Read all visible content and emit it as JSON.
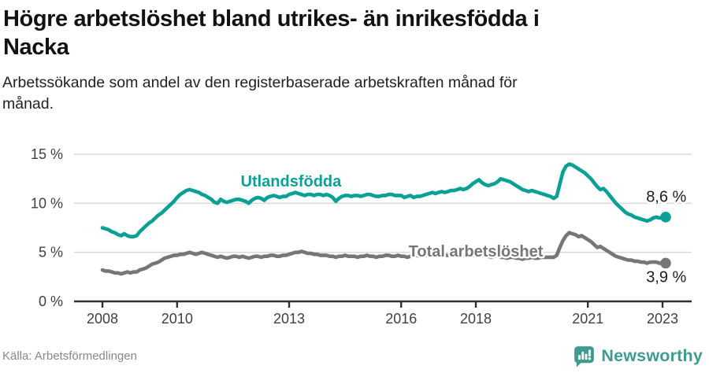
{
  "header": {
    "title": "Högre arbetslöshet bland utrikes- än inrikesfödda i\nNacka",
    "subtitle": "Arbetssökande som andel av den registerbaserade arbetskraften månad för\nmånad."
  },
  "footer": {
    "source": "Källa: Arbetsförmedlingen",
    "brand_name": "Newsworthy",
    "brand_icon": "speech-bubble-bar-chart-icon"
  },
  "colors": {
    "foreign_born_line": "#0ba095",
    "total_line": "#76767a",
    "value_label": "#1d1d1f",
    "axis": "#2f2f2f",
    "grid": "#d9d9d9",
    "tick_label": "#404040",
    "brand_teal": "#3f9b8f",
    "background": "#ffffff"
  },
  "chart_data": {
    "type": "line",
    "title": "Högre arbetslöshet bland utrikes- än inrikesfödda i Nacka",
    "subtitle": "Arbetssökande som andel av den registerbaserade arbetskraften månad för månad.",
    "source": "Källa: Arbetsförmedlingen",
    "x_start_year": 2008,
    "x_step_months": 1,
    "xlim": [
      2007.24,
      2023.78
    ],
    "ylim": [
      0,
      15
    ],
    "xticks": [
      2008,
      2010,
      2013,
      2016,
      2018,
      2021,
      2023
    ],
    "yticks": [
      0,
      5,
      10,
      15
    ],
    "ytick_suffix": " %",
    "grid": "horizontal",
    "legend_position": "inline-labels",
    "series": [
      {
        "name": "Utlandsfödda",
        "color": "#0ba095",
        "end_value_label": "8,6 %",
        "end_value": 8.6,
        "values": [
          7.5,
          7.4,
          7.3,
          7.1,
          7.0,
          6.8,
          6.7,
          6.9,
          6.7,
          6.6,
          6.6,
          6.7,
          7.1,
          7.4,
          7.7,
          8.0,
          8.2,
          8.5,
          8.8,
          9.0,
          9.3,
          9.6,
          9.9,
          10.2,
          10.6,
          10.9,
          11.1,
          11.3,
          11.4,
          11.3,
          11.2,
          11.1,
          10.9,
          10.8,
          10.6,
          10.4,
          10.1,
          10.0,
          10.4,
          10.2,
          10.1,
          10.2,
          10.3,
          10.4,
          10.4,
          10.3,
          10.2,
          10.0,
          10.3,
          10.5,
          10.6,
          10.5,
          10.3,
          10.6,
          10.7,
          10.8,
          10.7,
          10.6,
          10.7,
          10.7,
          10.9,
          11.0,
          11.1,
          11.0,
          10.9,
          10.8,
          10.9,
          10.9,
          10.8,
          10.9,
          10.9,
          10.8,
          10.9,
          10.8,
          10.6,
          10.2,
          10.5,
          10.7,
          10.8,
          10.8,
          10.7,
          10.8,
          10.8,
          10.7,
          10.8,
          10.9,
          10.9,
          10.8,
          10.7,
          10.7,
          10.8,
          10.8,
          10.9,
          10.9,
          10.8,
          10.8,
          10.8,
          10.6,
          10.7,
          10.8,
          10.6,
          10.7,
          10.7,
          10.8,
          10.9,
          11.0,
          11.1,
          11.0,
          11.1,
          11.2,
          11.1,
          11.2,
          11.3,
          11.3,
          11.4,
          11.5,
          11.4,
          11.5,
          11.7,
          12.0,
          12.2,
          12.4,
          12.1,
          11.9,
          11.8,
          11.9,
          12.0,
          12.2,
          12.5,
          12.4,
          12.3,
          12.2,
          12.0,
          11.8,
          11.6,
          11.4,
          11.3,
          11.2,
          11.3,
          11.2,
          11.1,
          11.0,
          10.9,
          10.8,
          10.7,
          10.5,
          10.7,
          12.0,
          13.2,
          13.8,
          14.0,
          13.9,
          13.7,
          13.5,
          13.3,
          13.1,
          12.8,
          12.5,
          12.1,
          11.7,
          11.4,
          11.5,
          11.2,
          10.8,
          10.4,
          10.0,
          9.7,
          9.4,
          9.1,
          8.9,
          8.8,
          8.6,
          8.5,
          8.4,
          8.3,
          8.2,
          8.3,
          8.5,
          8.6,
          8.5,
          8.5,
          8.6
        ]
      },
      {
        "name": "Total arbetslöshet",
        "color": "#76767a",
        "end_value_label": "3,9 %",
        "end_value": 3.9,
        "values": [
          3.2,
          3.1,
          3.1,
          3.0,
          2.9,
          2.9,
          2.8,
          2.9,
          3.0,
          2.9,
          3.0,
          3.0,
          3.2,
          3.3,
          3.4,
          3.6,
          3.8,
          3.9,
          4.0,
          4.2,
          4.4,
          4.5,
          4.6,
          4.7,
          4.7,
          4.8,
          4.8,
          4.9,
          5.0,
          4.9,
          4.8,
          4.9,
          5.0,
          4.9,
          4.8,
          4.7,
          4.6,
          4.5,
          4.6,
          4.5,
          4.4,
          4.5,
          4.6,
          4.6,
          4.5,
          4.6,
          4.5,
          4.4,
          4.5,
          4.6,
          4.6,
          4.5,
          4.6,
          4.6,
          4.7,
          4.7,
          4.6,
          4.6,
          4.7,
          4.7,
          4.8,
          4.9,
          5.0,
          5.0,
          5.1,
          5.0,
          4.9,
          4.9,
          4.8,
          4.8,
          4.7,
          4.7,
          4.7,
          4.6,
          4.6,
          4.5,
          4.6,
          4.6,
          4.7,
          4.6,
          4.6,
          4.6,
          4.5,
          4.6,
          4.6,
          4.7,
          4.6,
          4.6,
          4.5,
          4.6,
          4.6,
          4.7,
          4.7,
          4.6,
          4.6,
          4.7,
          4.6,
          4.6,
          4.5,
          4.6,
          4.6,
          4.7,
          4.6,
          4.7,
          4.7,
          4.6,
          4.7,
          4.6,
          4.7,
          4.6,
          4.7,
          4.7,
          4.8,
          4.7,
          4.8,
          4.7,
          4.7,
          4.6,
          4.6,
          4.7,
          4.7,
          4.8,
          4.7,
          4.6,
          4.6,
          4.5,
          4.6,
          4.6,
          4.5,
          4.5,
          4.4,
          4.5,
          4.5,
          4.4,
          4.4,
          4.3,
          4.4,
          4.4,
          4.5,
          4.4,
          4.4,
          4.5,
          4.5,
          4.5,
          4.5,
          4.5,
          4.7,
          5.5,
          6.2,
          6.7,
          7.0,
          6.9,
          6.8,
          6.6,
          6.7,
          6.5,
          6.3,
          6.1,
          5.8,
          5.5,
          5.6,
          5.4,
          5.2,
          5.0,
          4.8,
          4.6,
          4.5,
          4.4,
          4.3,
          4.2,
          4.2,
          4.1,
          4.1,
          4.0,
          4.0,
          3.9,
          4.0,
          4.0,
          4.0,
          3.9,
          3.9,
          3.9
        ]
      }
    ],
    "annotations": [
      {
        "text": "Utlandsfödda",
        "x": 2013.05,
        "y": 12.2,
        "color": "#0ba095",
        "bold": true,
        "size": 20
      },
      {
        "text": "Total arbetslöshet",
        "x": 2018.0,
        "y": 5.05,
        "color": "#76767a",
        "bold": true,
        "size": 20
      },
      {
        "text": "8,6 %",
        "x": 2023.1,
        "y": 10.62,
        "color": "#1d1d1f",
        "bold": false,
        "size": 20
      },
      {
        "text": "3,9 %",
        "x": 2023.1,
        "y": 2.45,
        "color": "#1d1d1f",
        "bold": false,
        "size": 20
      }
    ]
  }
}
